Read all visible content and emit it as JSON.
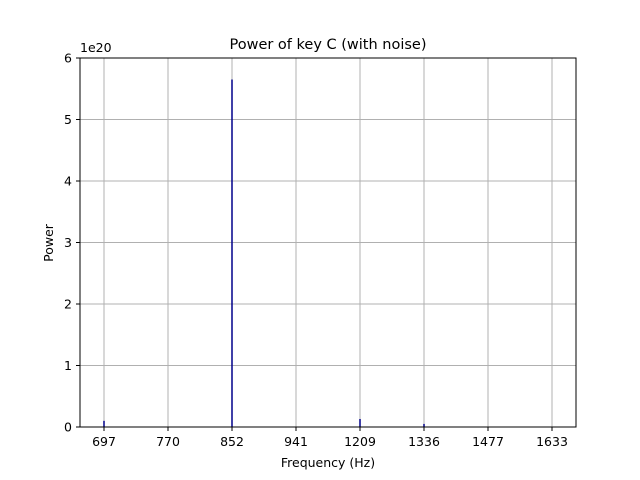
{
  "chart_data": {
    "type": "bar",
    "title": "Power of key C (with noise)",
    "xlabel": "Frequency (Hz)",
    "ylabel": "Power",
    "y_offset_label": "1e20",
    "y_ticks": [
      0,
      1,
      2,
      3,
      4,
      5,
      6
    ],
    "ylim": [
      0,
      6
    ],
    "x_ticks": [
      697,
      770,
      852,
      941,
      1209,
      1336,
      1477,
      1633
    ],
    "grid": true,
    "line_color": "#00008b",
    "peaks": [
      {
        "x": 697,
        "y": 0.1
      },
      {
        "x": 852,
        "y": 5.65
      },
      {
        "x": 1209,
        "y": 0.13
      },
      {
        "x": 1336,
        "y": 0.05
      }
    ]
  }
}
